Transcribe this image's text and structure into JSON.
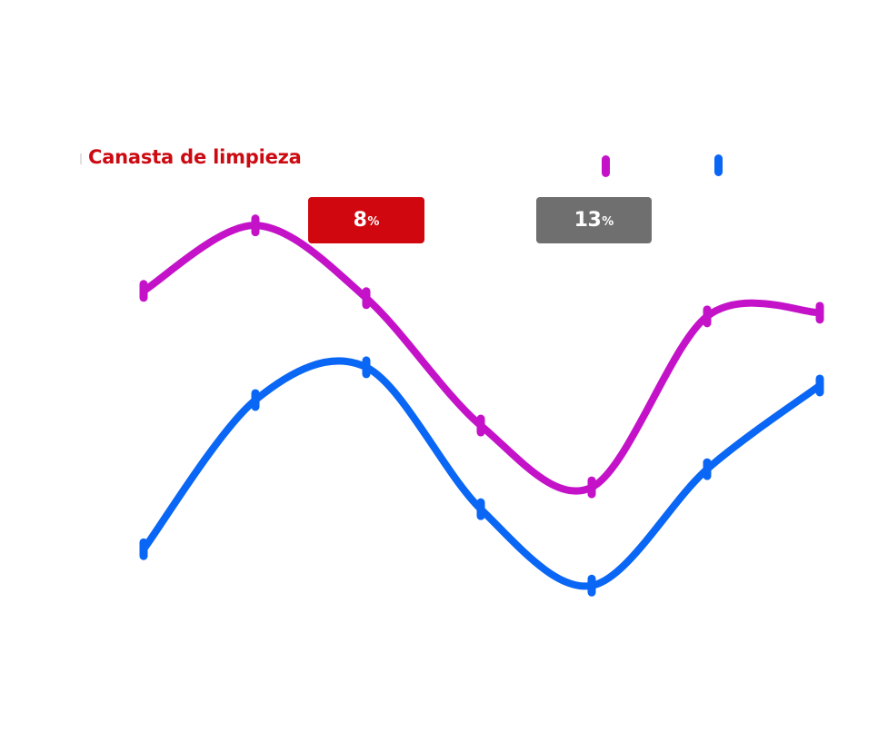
{
  "title": "Canasta de limpieza",
  "legend": [
    {
      "color": "#c412c9"
    },
    {
      "color": "#0a66f5"
    }
  ],
  "badges": [
    {
      "value": "8",
      "unit": "%",
      "color": "#d0070f"
    },
    {
      "value": "13",
      "unit": "%",
      "color": "#6f6f6f"
    }
  ],
  "chart_data": {
    "type": "line",
    "title": "Canasta de limpieza",
    "x": [
      1,
      2,
      3,
      4,
      5,
      6,
      7
    ],
    "xlabel": "",
    "ylabel": "",
    "grid": false,
    "legend_position": "top-right",
    "series": [
      {
        "color": "#c412c9",
        "values": [
          66,
          84,
          64,
          29,
          12,
          59,
          60
        ]
      },
      {
        "color": "#0a66f5",
        "values": [
          -5,
          36,
          45,
          6,
          -15,
          17,
          40
        ]
      }
    ],
    "ylim": [
      -50,
      110
    ]
  }
}
